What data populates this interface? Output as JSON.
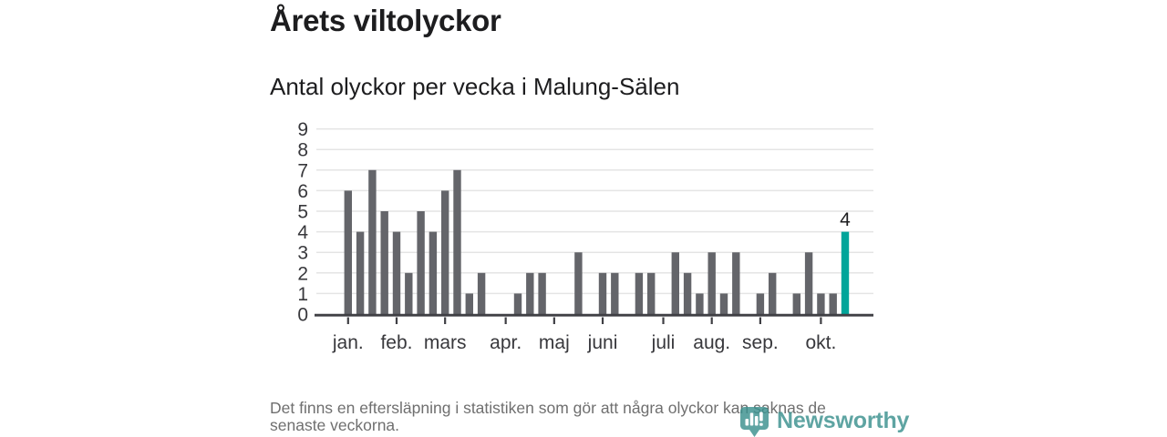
{
  "header": {
    "title": "Årets viltolyckor",
    "subtitle": "Antal olyckor per vecka i Malung-Sälen"
  },
  "chart_data": {
    "type": "bar",
    "title": "Årets viltolyckor",
    "subtitle": "Antal olyckor per vecka i Malung-Sälen",
    "x_description": "veckor (week 1–42), one bar per week",
    "values": [
      6,
      4,
      7,
      5,
      4,
      2,
      5,
      4,
      6,
      7,
      1,
      2,
      0,
      0,
      1,
      2,
      2,
      0,
      0,
      3,
      0,
      2,
      2,
      0,
      2,
      2,
      0,
      3,
      2,
      1,
      3,
      1,
      3,
      0,
      1,
      2,
      0,
      1,
      3,
      1,
      1,
      4
    ],
    "month_ticks": [
      {
        "label": "jan.",
        "index": 0
      },
      {
        "label": "feb.",
        "index": 4
      },
      {
        "label": "mars",
        "index": 8
      },
      {
        "label": "apr.",
        "index": 13
      },
      {
        "label": "maj",
        "index": 17
      },
      {
        "label": "juni",
        "index": 21
      },
      {
        "label": "juli",
        "index": 26
      },
      {
        "label": "aug.",
        "index": 30
      },
      {
        "label": "sep.",
        "index": 34
      },
      {
        "label": "okt.",
        "index": 39
      }
    ],
    "y_ticks": [
      0,
      1,
      2,
      3,
      4,
      5,
      6,
      7,
      8,
      9
    ],
    "ylim": [
      0,
      9
    ],
    "grid": true,
    "legend": "none",
    "highlight": {
      "index": 41,
      "value": 4,
      "label": "4"
    }
  },
  "colors": {
    "bar": "#64656a",
    "highlight": "#00a59a",
    "grid": "#e4e4e4",
    "axis": "#3f3f44",
    "chart_text": "#38383c",
    "data_label": "#1d1d1f",
    "footer_text": "#6f6f6f",
    "brand_teal": "#3b918e"
  },
  "footer": {
    "note_lines": [
      "Det finns en eftersläpning i statistiken som gör att några olyckor kan saknas de",
      "senaste veckorna."
    ],
    "note": "Det finns en eftersläpning i statistiken som gör att några olyckor kan saknas de senaste veckorna."
  },
  "branding": {
    "name": "Newsworthy"
  }
}
